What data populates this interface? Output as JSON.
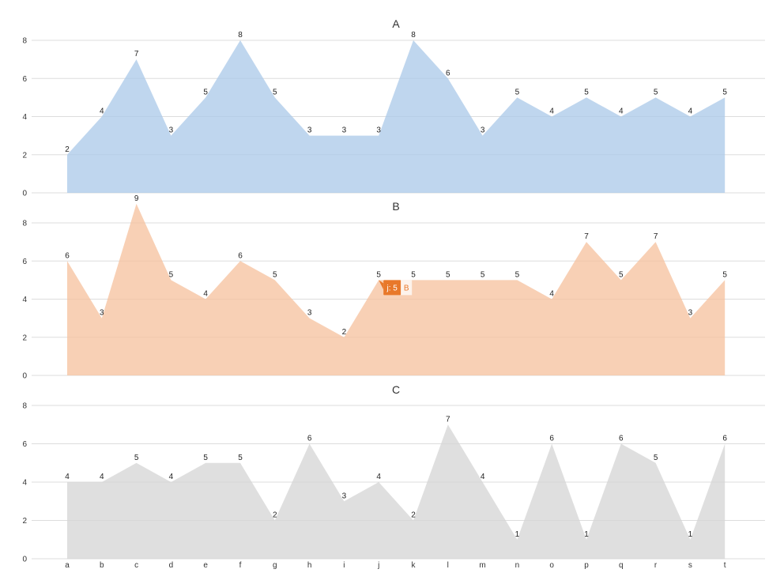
{
  "chart_data": {
    "type": "area",
    "categories": [
      "a",
      "b",
      "c",
      "d",
      "e",
      "f",
      "g",
      "h",
      "i",
      "j",
      "k",
      "l",
      "m",
      "n",
      "o",
      "p",
      "q",
      "r",
      "s",
      "t"
    ],
    "ylim": [
      0,
      8
    ],
    "yticks": [
      0,
      2,
      4,
      6,
      8
    ],
    "grid": true,
    "panels": [
      {
        "title": "A",
        "color": "#a9c8e8",
        "values": [
          2,
          4,
          7,
          3,
          5,
          8,
          5,
          3,
          3,
          3,
          8,
          6,
          3,
          5,
          4,
          5,
          4,
          5,
          4,
          5
        ]
      },
      {
        "title": "B",
        "color": "#f6c09c",
        "values": [
          6,
          3,
          9,
          5,
          4,
          6,
          5,
          3,
          2,
          5,
          5,
          5,
          5,
          5,
          4,
          7,
          5,
          7,
          3,
          5
        ]
      },
      {
        "title": "C",
        "color": "#d4d4d4",
        "values": [
          4,
          4,
          5,
          4,
          5,
          5,
          2,
          6,
          3,
          4,
          2,
          7,
          4,
          1,
          6,
          1,
          6,
          5,
          1,
          6
        ]
      }
    ],
    "tooltip": {
      "panel": 1,
      "category_index": 9,
      "text": "j: 5",
      "series": "B",
      "color": "#e8782a"
    }
  }
}
